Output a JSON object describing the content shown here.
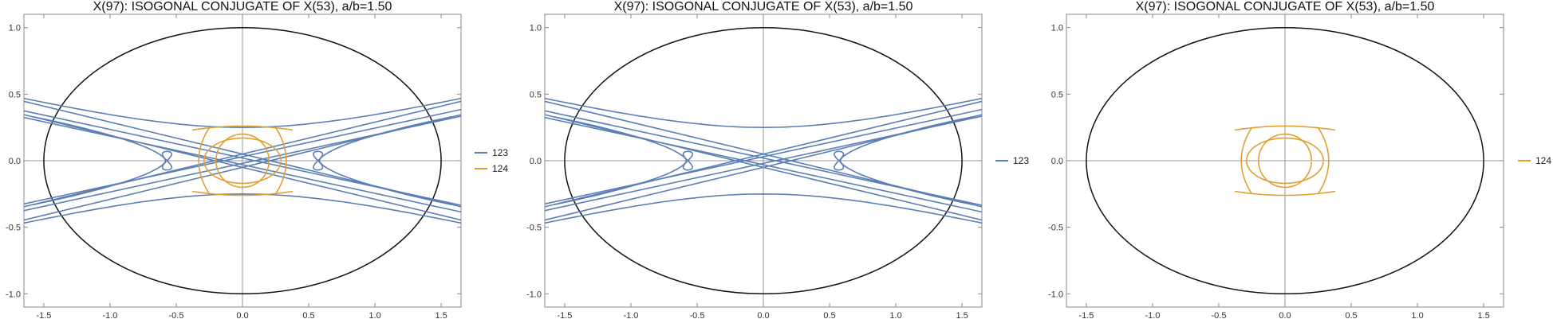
{
  "chart_data": [
    {
      "type": "line",
      "title": "X(97): ISOGONAL CONJUGATE OF X(53), a/b=1.50",
      "xlabel": "",
      "ylabel": "",
      "xlim": [
        -1.65,
        1.65
      ],
      "ylim": [
        -1.1,
        1.1
      ],
      "x_ticks": [
        "-1.5",
        "-1.0",
        "-0.5",
        "0.0",
        "0.5",
        "1.0",
        "1.5"
      ],
      "y_ticks": [
        "-1.0",
        "-0.5",
        "0.0",
        "0.5",
        "1.0"
      ],
      "grid": false,
      "legend_position": "right",
      "ellipse": {
        "a": 1.5,
        "b": 1.0
      },
      "series": [
        {
          "name": "123",
          "color": "#5b7fb5"
        },
        {
          "name": "124",
          "color": "#e0a030"
        }
      ]
    },
    {
      "type": "line",
      "title": "X(97): ISOGONAL CONJUGATE OF X(53), a/b=1.50",
      "xlabel": "",
      "ylabel": "",
      "xlim": [
        -1.65,
        1.65
      ],
      "ylim": [
        -1.1,
        1.1
      ],
      "x_ticks": [
        "-1.5",
        "-1.0",
        "-0.5",
        "0.0",
        "0.5",
        "1.0",
        "1.5"
      ],
      "y_ticks": [
        "-1.0",
        "-0.5",
        "0.0",
        "0.5",
        "1.0"
      ],
      "grid": false,
      "legend_position": "right",
      "ellipse": {
        "a": 1.5,
        "b": 1.0
      },
      "series": [
        {
          "name": "123",
          "color": "#5b7fb5"
        }
      ]
    },
    {
      "type": "line",
      "title": "X(97): ISOGONAL CONJUGATE OF X(53), a/b=1.50",
      "xlabel": "",
      "ylabel": "",
      "xlim": [
        -1.65,
        1.65
      ],
      "ylim": [
        -1.1,
        1.1
      ],
      "x_ticks": [
        "-1.5",
        "-1.0",
        "-0.5",
        "0.0",
        "0.5",
        "1.0",
        "1.5"
      ],
      "y_ticks": [
        "-1.0",
        "-0.5",
        "0.0",
        "0.5",
        "1.0"
      ],
      "grid": false,
      "legend_position": "right",
      "ellipse": {
        "a": 1.5,
        "b": 1.0
      },
      "series": [
        {
          "name": "124",
          "color": "#e0a030"
        }
      ]
    }
  ]
}
